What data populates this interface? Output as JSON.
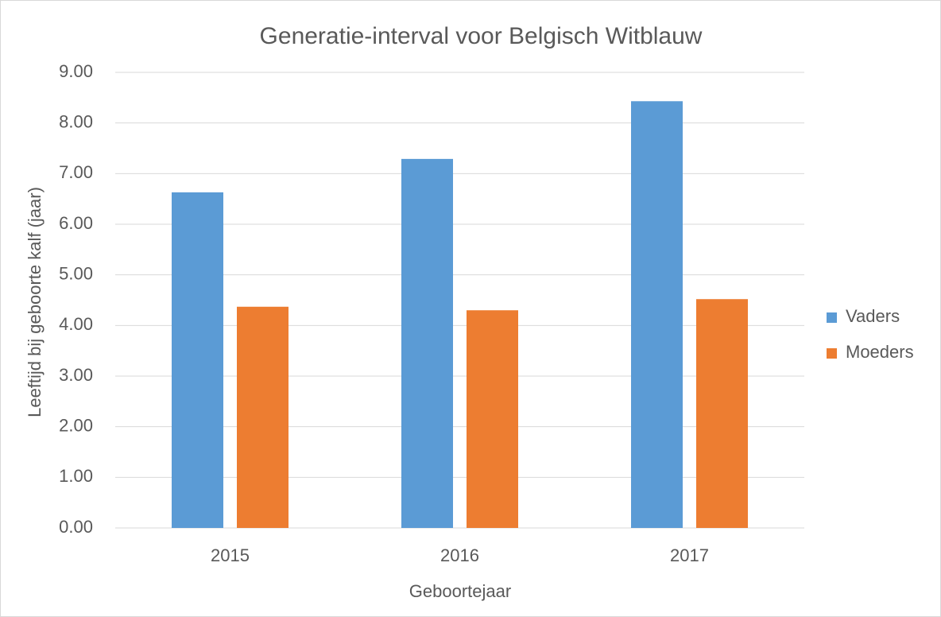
{
  "chart_data": {
    "type": "bar",
    "title": "Generatie-interval voor Belgisch Witblauw",
    "x_label": "Geboortejaar",
    "y_label": "Leeftijd bij geboorte kalf (jaar)",
    "categories": [
      "2015",
      "2016",
      "2017"
    ],
    "series": [
      {
        "name": "Vaders",
        "color": "#5b9bd5",
        "values": [
          6.63,
          7.29,
          8.43
        ]
      },
      {
        "name": "Moeders",
        "color": "#ed7d31",
        "values": [
          4.37,
          4.3,
          4.52
        ]
      }
    ],
    "ylim": [
      0,
      9
    ],
    "yticks": [
      {
        "value": 0,
        "label": "0.00"
      },
      {
        "value": 1,
        "label": "1.00"
      },
      {
        "value": 2,
        "label": "2.00"
      },
      {
        "value": 3,
        "label": "3.00"
      },
      {
        "value": 4,
        "label": "4.00"
      },
      {
        "value": 5,
        "label": "5.00"
      },
      {
        "value": 6,
        "label": "6.00"
      },
      {
        "value": 7,
        "label": "7.00"
      },
      {
        "value": 8,
        "label": "8.00"
      },
      {
        "value": 9,
        "label": "9.00"
      }
    ],
    "grid": true,
    "legend": "right"
  }
}
